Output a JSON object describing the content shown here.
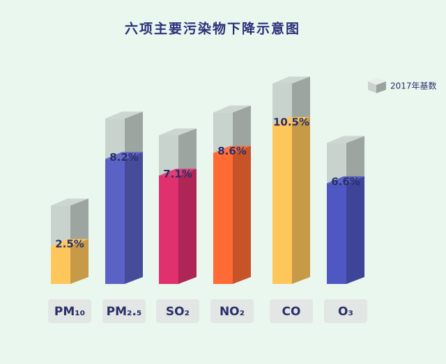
{
  "chart_data": {
    "type": "bar",
    "title": "六项主要污染物下降示意图",
    "legend": "2017年基数",
    "legend_position": "upper right",
    "base_color": "#c9d3ce",
    "categories": [
      "PM₁₀",
      "PM₂.₅",
      "SO₂",
      "NO₂",
      "CO",
      "O₃"
    ],
    "values": [
      2.5,
      8.2,
      7.1,
      8.6,
      10.5,
      6.6
    ],
    "value_labels": [
      "2.5%",
      "8.2%",
      "7.1%",
      "8.6%",
      "10.5%",
      "6.6%"
    ],
    "colors": [
      "#ffc65c",
      "#5a62c6",
      "#e0306e",
      "#ff6a35",
      "#ffc65c",
      "#4f57c2"
    ]
  }
}
